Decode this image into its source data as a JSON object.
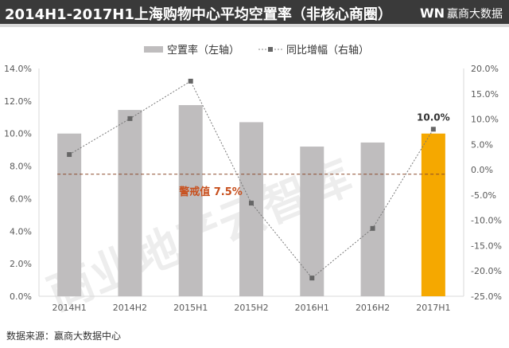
{
  "header": {
    "title": "2014H1-2017H1上海购物中心平均空置率（非核心商圈）",
    "logo_mark": "WN",
    "logo_text": "赢商大数据"
  },
  "footer": {
    "source": "数据来源：赢商大数据中心"
  },
  "watermark": "商业地产云智库",
  "chart_data": {
    "type": "bar+line",
    "title": "2014H1-2017H1上海购物中心平均空置率（非核心商圈）",
    "categories": [
      "2014H1",
      "2014H2",
      "2015H1",
      "2015H2",
      "2016H1",
      "2016H2",
      "2017H1"
    ],
    "series": [
      {
        "name": "空置率（左轴）",
        "type": "bar",
        "axis": "left",
        "values": [
          10.0,
          11.45,
          11.75,
          10.7,
          9.2,
          9.45,
          10.0
        ],
        "color": "#bfbdbe",
        "highlight_color": "#f5a800",
        "highlight_index": 6
      },
      {
        "name": "同比增幅（右轴）",
        "type": "line",
        "axis": "right",
        "values": [
          3.0,
          10.1,
          17.5,
          -6.6,
          -21.4,
          -11.6,
          8.0
        ],
        "color": "#777777"
      }
    ],
    "left_axis": {
      "ylim": [
        0,
        14
      ],
      "ticks": [
        "0.0%",
        "2.0%",
        "4.0%",
        "6.0%",
        "8.0%",
        "10.0%",
        "12.0%",
        "14.0%"
      ]
    },
    "right_axis": {
      "ylim": [
        -25,
        20
      ],
      "ticks": [
        "-25.0%",
        "-20.0%",
        "-15.0%",
        "-10.0%",
        "-5.0%",
        "0.0%",
        "5.0%",
        "10.0%",
        "15.0%",
        "20.0%"
      ]
    },
    "reference_line": {
      "value": 7.5,
      "label": "警戒值 7.5%",
      "color": "#c0392b"
    },
    "data_labels": [
      {
        "index": 6,
        "text": "10.0%"
      }
    ],
    "legend": "top-center"
  }
}
